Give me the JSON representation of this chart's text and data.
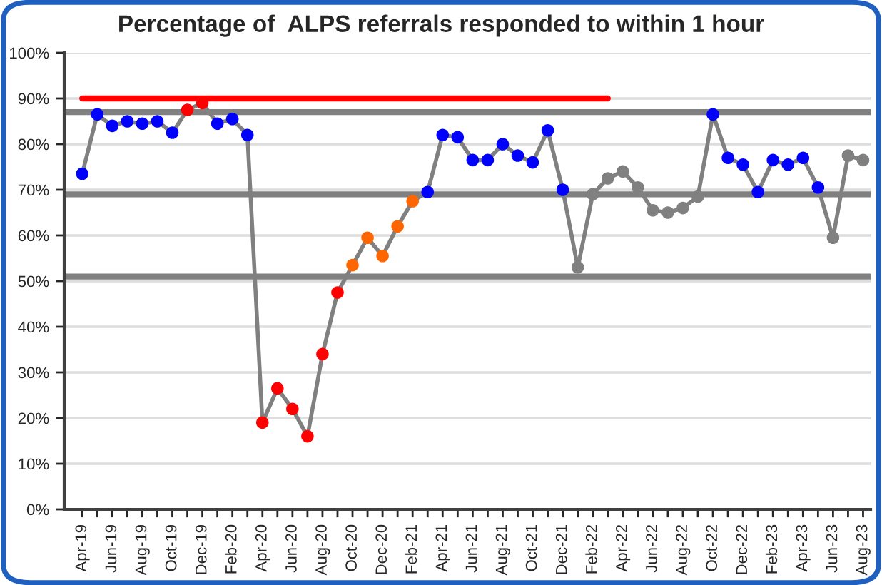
{
  "chart_data": {
    "type": "line",
    "title": "Percentage of  ALPS referrals responded to within 1 hour",
    "categories": [
      "Apr-19",
      null,
      "Jun-19",
      null,
      "Aug-19",
      null,
      "Oct-19",
      null,
      "Dec-19",
      null,
      "Feb-20",
      null,
      "Apr-20",
      null,
      "Jun-20",
      null,
      "Aug-20",
      null,
      "Oct-20",
      null,
      "Dec-20",
      null,
      "Feb-21",
      null,
      "Apr-21",
      null,
      "Jun-21",
      null,
      "Aug-21",
      null,
      "Oct-21",
      null,
      "Dec-21",
      null,
      "Feb-22",
      null,
      "Apr-22",
      null,
      "Jun-22",
      null,
      "Aug-22",
      null,
      "Oct-22",
      null,
      "Dec-22",
      null,
      "Feb-23",
      null,
      "Apr-23",
      null,
      "Jun-23",
      null,
      "Aug-23"
    ],
    "series": [
      {
        "color": "#808080",
        "marker": "circle",
        "values": [
          73.5,
          86.5,
          84,
          85,
          84.5,
          85,
          82.5,
          87.5,
          89,
          84.5,
          85.5,
          82,
          19,
          26.5,
          22,
          16,
          34,
          47.5,
          53.5,
          59.5,
          55.5,
          62,
          67.5,
          69.5,
          82,
          81.5,
          76.5,
          76.5,
          80,
          77.5,
          76,
          83,
          70,
          53,
          69,
          72.5,
          74,
          70.5,
          65.5,
          65,
          66,
          68.5,
          86.5,
          77,
          75.5,
          69.5,
          76.5,
          75.5,
          77,
          70.5,
          59.5,
          77.5,
          76.5
        ],
        "colors": [
          "#0000ff",
          "#0000ff",
          "#0000ff",
          "#0000ff",
          "#0000ff",
          "#0000ff",
          "#0000ff",
          "#ff0000",
          "#ff0000",
          "#0000ff",
          "#0000ff",
          "#0000ff",
          "#ff0000",
          "#ff0000",
          "#ff0000",
          "#ff0000",
          "#ff0000",
          "#ff0000",
          "#ff6600",
          "#ff6600",
          "#ff6600",
          "#ff6600",
          "#ff6600",
          "#0000ff",
          "#0000ff",
          "#0000ff",
          "#0000ff",
          "#0000ff",
          "#0000ff",
          "#0000ff",
          "#0000ff",
          "#0000ff",
          "#0000ff",
          "#808080",
          "#808080",
          "#808080",
          "#808080",
          "#808080",
          "#808080",
          "#808080",
          "#808080",
          "#808080",
          "#0000ff",
          "#0000ff",
          "#0000ff",
          "#0000ff",
          "#0000ff",
          "#0000ff",
          "#0000ff",
          "#0000ff",
          "#808080",
          "#808080",
          "#808080"
        ]
      },
      {
        "color": "#ff0000",
        "marker": "none",
        "values": [
          90,
          90,
          90,
          90,
          90,
          90,
          90,
          90,
          90,
          90,
          90,
          90,
          90,
          90,
          90,
          90,
          90,
          90,
          90,
          90,
          90,
          90,
          90,
          90,
          90,
          90,
          90,
          90,
          90,
          90,
          90,
          90,
          90,
          90,
          90,
          90,
          null,
          null,
          null,
          null,
          null,
          null,
          null,
          null,
          null,
          null,
          null,
          null,
          null,
          null,
          null,
          null,
          null
        ]
      }
    ],
    "ref_lines": [
      {
        "axis": "y",
        "value": 87,
        "color": "#808080"
      },
      {
        "axis": "y",
        "value": 69,
        "color": "#808080"
      },
      {
        "axis": "y",
        "value": 51,
        "color": "#808080"
      }
    ],
    "ylim": [
      0,
      100
    ],
    "yticks": [
      {
        "value": 0,
        "label": "0%"
      },
      {
        "value": 10,
        "label": "10%"
      },
      {
        "value": 20,
        "label": "20%"
      },
      {
        "value": 30,
        "label": "30%"
      },
      {
        "value": 40,
        "label": "40%"
      },
      {
        "value": 50,
        "label": "50%"
      },
      {
        "value": 60,
        "label": "60%"
      },
      {
        "value": 70,
        "label": "70%"
      },
      {
        "value": 80,
        "label": "80%"
      },
      {
        "value": 90,
        "label": "90%"
      },
      {
        "value": 100,
        "label": "100%"
      }
    ],
    "grid": "y",
    "legend": false
  }
}
